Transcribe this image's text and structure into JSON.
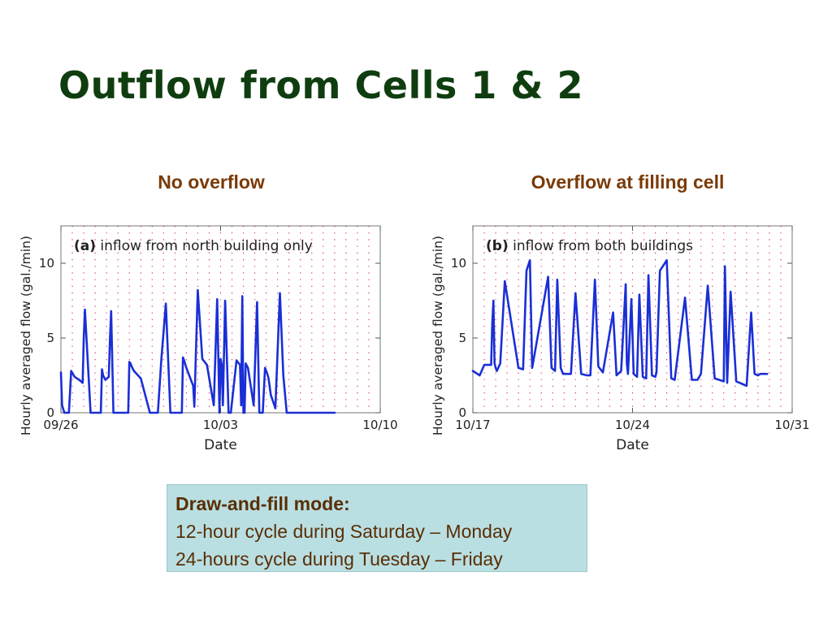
{
  "slide": {
    "title": "Outflow from Cells 1 & 2"
  },
  "panels": [
    {
      "heading": "No overflow"
    },
    {
      "heading": "Overflow at filling cell"
    }
  ],
  "note": {
    "heading": "Draw-and-fill mode:",
    "lines": [
      "12-hour cycle during Saturday – Monday",
      "24-hours cycle during Tuesday – Friday"
    ]
  },
  "colors": {
    "title": "#0f3d0f",
    "panel_heading": "#7a3a06",
    "series": "#1a2fd6",
    "grid": "#d81b60",
    "note_background": "#b9dfe2",
    "note_text": "#5a2e05"
  },
  "chart_data": [
    {
      "type": "line",
      "annotation": "(a) inflow from north building only",
      "annotation_bold": "(a)",
      "annotation_rest": "inflow from north building only",
      "xlabel": "Date",
      "ylabel": "Hourly averaged flow (gal./min)",
      "x_ticks": [
        "09/26",
        "10/03",
        "10/10"
      ],
      "x_range_days": [
        0,
        14
      ],
      "y_ticks": [
        0,
        5,
        10
      ],
      "ylim": [
        0,
        12.5
      ],
      "grid": "dotted vertical lines at 12-hour intervals",
      "series": [
        {
          "x": [
            0,
            0.05,
            0.15,
            0.25,
            0.35,
            0.45,
            0.6,
            0.8,
            0.95,
            1.0,
            1.05,
            1.3,
            1.5,
            1.65,
            1.75,
            1.8,
            1.85,
            1.95,
            2.1,
            2.15,
            2.2,
            2.3,
            2.5,
            2.7,
            2.8,
            2.85,
            2.9,
            2.95,
            3.0,
            3.05,
            3.1,
            3.2,
            3.5,
            3.9,
            4.15,
            4.25,
            4.4,
            4.6,
            4.8,
            5.0,
            5.15,
            5.25,
            5.3,
            5.35,
            5.4,
            5.5,
            5.8,
            5.85,
            6.0,
            6.2,
            6.4,
            6.7,
            6.85,
            6.95,
            7.0,
            7.05,
            7.1,
            7.2,
            7.35,
            7.45,
            7.7,
            7.85,
            7.9,
            7.95,
            8.0,
            8.05,
            8.1,
            8.2,
            8.45,
            8.6,
            8.7,
            8.85,
            8.95,
            9.0,
            9.05,
            9.1,
            9.2,
            9.4,
            9.6,
            9.75,
            9.9,
            9.95,
            10.0,
            10.05,
            10.1,
            10.2,
            10.5,
            10.7,
            10.9,
            11.1,
            11.15,
            11.25,
            11.3,
            11.35,
            11.45,
            11.6,
            11.8,
            12.0
          ],
          "y": [
            2.7,
            0.5,
            0.0,
            0.0,
            0.0,
            2.8,
            2.4,
            2.2,
            2.0,
            5.0,
            6.9,
            0.0,
            0.0,
            0.0,
            0.0,
            2.9,
            2.5,
            2.2,
            2.4,
            5.0,
            6.8,
            0.0,
            0.0,
            0.0,
            0.0,
            0.0,
            0.0,
            0.0,
            3.4,
            3.3,
            3.1,
            2.8,
            2.3,
            0.0,
            0.0,
            0.0,
            3.5,
            7.3,
            0.0,
            0.0,
            0.0,
            0.0,
            0.0,
            3.7,
            3.5,
            3.0,
            1.8,
            0.4,
            8.2,
            3.6,
            3.2,
            0.5,
            7.6,
            0.0,
            3.6,
            3.2,
            0.5,
            7.5,
            0.0,
            0.0,
            3.5,
            3.2,
            0.5,
            7.8,
            0.0,
            0.0,
            3.3,
            3.0,
            0.5,
            7.4,
            0.0,
            0.0,
            3.0,
            2.8,
            2.6,
            2.3,
            1.2,
            0.3,
            8.0,
            2.5,
            0.0,
            0.0,
            0.0,
            0.0,
            0.0,
            0.0,
            0.0,
            0.0,
            0.0,
            0.0,
            0.0,
            0.0,
            0.0,
            0.0,
            0.0,
            0.0,
            0.0,
            0.0
          ]
        }
      ]
    },
    {
      "type": "line",
      "annotation": "(b) inflow from both buildings",
      "annotation_bold": "(b)",
      "annotation_rest": "inflow from both buildings",
      "xlabel": "Date",
      "ylabel": "Hourly averaged flow (gal./min)",
      "x_ticks": [
        "10/17",
        "10/24",
        "10/31"
      ],
      "x_range_days": [
        0,
        14
      ],
      "y_ticks": [
        0,
        5,
        10
      ],
      "ylim": [
        0,
        12.5
      ],
      "grid": "dotted vertical lines at 12-hour intervals",
      "series": [
        {
          "x": [
            0,
            0.3,
            0.5,
            0.8,
            0.85,
            0.9,
            0.95,
            1.0,
            1.05,
            1.2,
            1.4,
            2.0,
            2.2,
            2.35,
            2.5,
            2.6,
            3.3,
            3.45,
            3.6,
            3.7,
            3.85,
            3.95,
            4.3,
            4.5,
            4.75,
            5.0,
            5.15,
            5.35,
            5.5,
            5.7,
            6.15,
            6.3,
            6.5,
            6.7,
            6.75,
            6.8,
            6.95,
            7.05,
            7.2,
            7.3,
            7.45,
            7.6,
            7.7,
            7.85,
            8.0,
            8.05,
            8.2,
            8.5,
            8.7,
            8.85,
            9.3,
            9.6,
            9.85,
            10.0,
            10.3,
            10.6,
            10.8,
            11.0,
            11.05,
            11.15,
            11.3,
            11.55,
            11.85,
            12.0,
            12.2,
            12.35,
            12.5,
            12.6,
            12.7,
            12.9
          ],
          "y": [
            2.8,
            2.5,
            3.2,
            3.2,
            6.0,
            7.5,
            3.3,
            3.0,
            2.8,
            3.3,
            8.8,
            3.0,
            2.9,
            9.5,
            10.2,
            3.0,
            9.1,
            3.0,
            2.8,
            8.9,
            3.0,
            2.6,
            2.6,
            8.0,
            2.6,
            2.5,
            2.5,
            8.9,
            3.1,
            2.7,
            6.7,
            2.5,
            2.8,
            8.6,
            3.3,
            2.6,
            7.6,
            2.6,
            2.4,
            7.9,
            2.4,
            2.3,
            9.2,
            2.5,
            2.4,
            2.7,
            9.5,
            10.2,
            2.3,
            2.2,
            7.7,
            2.2,
            2.2,
            2.6,
            8.5,
            2.3,
            2.2,
            2.1,
            9.8,
            2.0,
            8.1,
            2.1,
            1.9,
            1.8,
            6.7,
            2.6,
            2.5,
            2.6,
            2.6,
            2.6
          ]
        }
      ]
    }
  ]
}
